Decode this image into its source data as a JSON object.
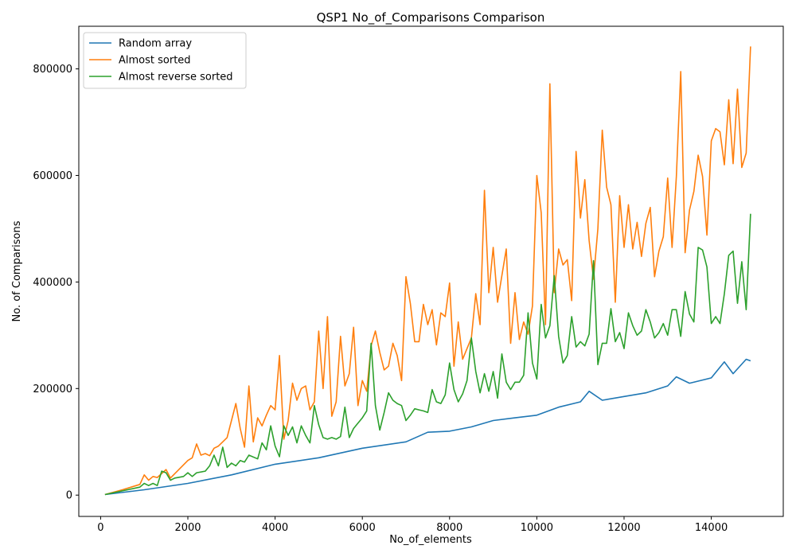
{
  "chart_data": {
    "type": "line",
    "title": "QSP1 No_of_Comparisons Comparison",
    "xlabel": "No_of_elements",
    "ylabel": "No. of Comparisons",
    "xlim": [
      -500,
      15650
    ],
    "ylim": [
      -40000,
      880000
    ],
    "xticks": [
      0,
      2000,
      4000,
      6000,
      8000,
      10000,
      12000,
      14000
    ],
    "yticks": [
      0,
      200000,
      400000,
      600000,
      800000
    ],
    "grid": false,
    "legend_position": "top-left",
    "series": [
      {
        "name": "Random array",
        "color": "#1f77b4",
        "points": [
          [
            100,
            1000
          ],
          [
            1000,
            10000
          ],
          [
            2000,
            22000
          ],
          [
            3000,
            38000
          ],
          [
            4000,
            58000
          ],
          [
            5000,
            70000
          ],
          [
            6000,
            88000
          ],
          [
            7000,
            100000
          ],
          [
            7500,
            118000
          ],
          [
            8000,
            120000
          ],
          [
            8500,
            128000
          ],
          [
            9000,
            140000
          ],
          [
            9500,
            145000
          ],
          [
            10000,
            150000
          ],
          [
            10500,
            165000
          ],
          [
            11000,
            175000
          ],
          [
            11200,
            195000
          ],
          [
            11500,
            178000
          ],
          [
            12000,
            185000
          ],
          [
            12500,
            192000
          ],
          [
            13000,
            205000
          ],
          [
            13200,
            222000
          ],
          [
            13500,
            210000
          ],
          [
            14000,
            220000
          ],
          [
            14300,
            250000
          ],
          [
            14500,
            228000
          ],
          [
            14800,
            255000
          ],
          [
            14900,
            252000
          ]
        ]
      },
      {
        "name": "Almost sorted",
        "color": "#ff7f0e",
        "points": [
          [
            100,
            1000
          ],
          [
            500,
            10000
          ],
          [
            900,
            20000
          ],
          [
            1000,
            38000
          ],
          [
            1100,
            28000
          ],
          [
            1200,
            35000
          ],
          [
            1300,
            33000
          ],
          [
            1500,
            48000
          ],
          [
            1600,
            32000
          ],
          [
            2000,
            65000
          ],
          [
            2100,
            70000
          ],
          [
            2200,
            96000
          ],
          [
            2300,
            75000
          ],
          [
            2400,
            78000
          ],
          [
            2500,
            74000
          ],
          [
            2600,
            88000
          ],
          [
            2700,
            92000
          ],
          [
            2800,
            100000
          ],
          [
            2900,
            108000
          ],
          [
            3000,
            140000
          ],
          [
            3100,
            172000
          ],
          [
            3200,
            125000
          ],
          [
            3300,
            90000
          ],
          [
            3400,
            205000
          ],
          [
            3500,
            100000
          ],
          [
            3600,
            145000
          ],
          [
            3700,
            130000
          ],
          [
            3800,
            150000
          ],
          [
            3900,
            168000
          ],
          [
            4000,
            160000
          ],
          [
            4100,
            262000
          ],
          [
            4200,
            105000
          ],
          [
            4300,
            140000
          ],
          [
            4400,
            210000
          ],
          [
            4500,
            178000
          ],
          [
            4600,
            200000
          ],
          [
            4700,
            205000
          ],
          [
            4800,
            160000
          ],
          [
            4900,
            175000
          ],
          [
            5000,
            308000
          ],
          [
            5100,
            200000
          ],
          [
            5200,
            335000
          ],
          [
            5300,
            148000
          ],
          [
            5400,
            175000
          ],
          [
            5500,
            298000
          ],
          [
            5600,
            205000
          ],
          [
            5700,
            228000
          ],
          [
            5800,
            315000
          ],
          [
            5900,
            168000
          ],
          [
            6000,
            215000
          ],
          [
            6100,
            195000
          ],
          [
            6200,
            280000
          ],
          [
            6300,
            308000
          ],
          [
            6400,
            268000
          ],
          [
            6500,
            235000
          ],
          [
            6600,
            242000
          ],
          [
            6700,
            285000
          ],
          [
            6800,
            262000
          ],
          [
            6900,
            215000
          ],
          [
            7000,
            410000
          ],
          [
            7100,
            360000
          ],
          [
            7200,
            288000
          ],
          [
            7300,
            288000
          ],
          [
            7400,
            358000
          ],
          [
            7500,
            320000
          ],
          [
            7600,
            348000
          ],
          [
            7700,
            282000
          ],
          [
            7800,
            342000
          ],
          [
            7900,
            335000
          ],
          [
            8000,
            398000
          ],
          [
            8100,
            242000
          ],
          [
            8200,
            325000
          ],
          [
            8300,
            255000
          ],
          [
            8400,
            275000
          ],
          [
            8500,
            295000
          ],
          [
            8600,
            378000
          ],
          [
            8700,
            320000
          ],
          [
            8800,
            572000
          ],
          [
            8900,
            380000
          ],
          [
            9000,
            465000
          ],
          [
            9100,
            362000
          ],
          [
            9200,
            412000
          ],
          [
            9300,
            462000
          ],
          [
            9400,
            285000
          ],
          [
            9500,
            380000
          ],
          [
            9600,
            292000
          ],
          [
            9700,
            325000
          ],
          [
            9800,
            302000
          ],
          [
            9900,
            355000
          ],
          [
            10000,
            600000
          ],
          [
            10100,
            530000
          ],
          [
            10200,
            320000
          ],
          [
            10300,
            772000
          ],
          [
            10400,
            380000
          ],
          [
            10500,
            462000
          ],
          [
            10600,
            432000
          ],
          [
            10700,
            442000
          ],
          [
            10800,
            365000
          ],
          [
            10900,
            645000
          ],
          [
            11000,
            520000
          ],
          [
            11100,
            592000
          ],
          [
            11200,
            478000
          ],
          [
            11300,
            405000
          ],
          [
            11400,
            500000
          ],
          [
            11500,
            685000
          ],
          [
            11600,
            578000
          ],
          [
            11700,
            545000
          ],
          [
            11800,
            362000
          ],
          [
            11900,
            562000
          ],
          [
            12000,
            465000
          ],
          [
            12100,
            545000
          ],
          [
            12200,
            462000
          ],
          [
            12300,
            512000
          ],
          [
            12400,
            448000
          ],
          [
            12500,
            510000
          ],
          [
            12600,
            540000
          ],
          [
            12700,
            410000
          ],
          [
            12800,
            458000
          ],
          [
            12900,
            485000
          ],
          [
            13000,
            595000
          ],
          [
            13100,
            465000
          ],
          [
            13200,
            598000
          ],
          [
            13300,
            795000
          ],
          [
            13400,
            455000
          ],
          [
            13500,
            535000
          ],
          [
            13600,
            570000
          ],
          [
            13700,
            638000
          ],
          [
            13800,
            598000
          ],
          [
            13900,
            488000
          ],
          [
            14000,
            665000
          ],
          [
            14100,
            688000
          ],
          [
            14200,
            682000
          ],
          [
            14300,
            620000
          ],
          [
            14400,
            742000
          ],
          [
            14500,
            622000
          ],
          [
            14600,
            762000
          ],
          [
            14700,
            615000
          ],
          [
            14800,
            642000
          ],
          [
            14900,
            842000
          ]
        ]
      },
      {
        "name": "Almost reverse sorted",
        "color": "#2ca02c",
        "points": [
          [
            100,
            1000
          ],
          [
            500,
            8000
          ],
          [
            900,
            15000
          ],
          [
            1000,
            22000
          ],
          [
            1100,
            18000
          ],
          [
            1200,
            22000
          ],
          [
            1300,
            18000
          ],
          [
            1400,
            45000
          ],
          [
            1500,
            42000
          ],
          [
            1600,
            28000
          ],
          [
            1700,
            32000
          ],
          [
            1900,
            35000
          ],
          [
            2000,
            42000
          ],
          [
            2100,
            35000
          ],
          [
            2200,
            42000
          ],
          [
            2400,
            45000
          ],
          [
            2500,
            55000
          ],
          [
            2600,
            75000
          ],
          [
            2700,
            55000
          ],
          [
            2800,
            90000
          ],
          [
            2900,
            52000
          ],
          [
            3000,
            60000
          ],
          [
            3100,
            55000
          ],
          [
            3200,
            65000
          ],
          [
            3300,
            62000
          ],
          [
            3400,
            75000
          ],
          [
            3600,
            68000
          ],
          [
            3700,
            98000
          ],
          [
            3800,
            85000
          ],
          [
            3900,
            130000
          ],
          [
            4000,
            92000
          ],
          [
            4100,
            72000
          ],
          [
            4200,
            130000
          ],
          [
            4300,
            112000
          ],
          [
            4400,
            128000
          ],
          [
            4500,
            98000
          ],
          [
            4600,
            130000
          ],
          [
            4700,
            112000
          ],
          [
            4800,
            98000
          ],
          [
            4900,
            168000
          ],
          [
            5000,
            132000
          ],
          [
            5100,
            108000
          ],
          [
            5200,
            105000
          ],
          [
            5300,
            108000
          ],
          [
            5400,
            105000
          ],
          [
            5500,
            110000
          ],
          [
            5600,
            165000
          ],
          [
            5700,
            108000
          ],
          [
            5800,
            125000
          ],
          [
            5900,
            135000
          ],
          [
            6000,
            145000
          ],
          [
            6100,
            158000
          ],
          [
            6200,
            285000
          ],
          [
            6300,
            168000
          ],
          [
            6400,
            122000
          ],
          [
            6500,
            155000
          ],
          [
            6600,
            192000
          ],
          [
            6700,
            178000
          ],
          [
            6800,
            172000
          ],
          [
            6900,
            168000
          ],
          [
            7000,
            140000
          ],
          [
            7100,
            150000
          ],
          [
            7200,
            162000
          ],
          [
            7300,
            160000
          ],
          [
            7400,
            158000
          ],
          [
            7500,
            155000
          ],
          [
            7600,
            198000
          ],
          [
            7700,
            175000
          ],
          [
            7800,
            172000
          ],
          [
            7900,
            188000
          ],
          [
            8000,
            248000
          ],
          [
            8100,
            198000
          ],
          [
            8200,
            175000
          ],
          [
            8300,
            190000
          ],
          [
            8400,
            215000
          ],
          [
            8500,
            295000
          ],
          [
            8600,
            232000
          ],
          [
            8700,
            192000
          ],
          [
            8800,
            228000
          ],
          [
            8900,
            195000
          ],
          [
            9000,
            232000
          ],
          [
            9100,
            182000
          ],
          [
            9200,
            265000
          ],
          [
            9300,
            212000
          ],
          [
            9400,
            198000
          ],
          [
            9500,
            212000
          ],
          [
            9600,
            212000
          ],
          [
            9700,
            225000
          ],
          [
            9800,
            342000
          ],
          [
            9900,
            248000
          ],
          [
            10000,
            218000
          ],
          [
            10100,
            358000
          ],
          [
            10200,
            295000
          ],
          [
            10300,
            318000
          ],
          [
            10400,
            412000
          ],
          [
            10500,
            298000
          ],
          [
            10600,
            248000
          ],
          [
            10700,
            262000
          ],
          [
            10800,
            335000
          ],
          [
            10900,
            278000
          ],
          [
            11000,
            288000
          ],
          [
            11100,
            280000
          ],
          [
            11200,
            302000
          ],
          [
            11300,
            440000
          ],
          [
            11400,
            245000
          ],
          [
            11500,
            285000
          ],
          [
            11600,
            285000
          ],
          [
            11700,
            350000
          ],
          [
            11800,
            288000
          ],
          [
            11900,
            305000
          ],
          [
            12000,
            275000
          ],
          [
            12100,
            342000
          ],
          [
            12200,
            318000
          ],
          [
            12300,
            300000
          ],
          [
            12400,
            308000
          ],
          [
            12500,
            348000
          ],
          [
            12600,
            325000
          ],
          [
            12700,
            295000
          ],
          [
            12800,
            305000
          ],
          [
            12900,
            322000
          ],
          [
            13000,
            300000
          ],
          [
            13100,
            348000
          ],
          [
            13200,
            348000
          ],
          [
            13300,
            298000
          ],
          [
            13400,
            382000
          ],
          [
            13500,
            340000
          ],
          [
            13600,
            325000
          ],
          [
            13700,
            465000
          ],
          [
            13800,
            460000
          ],
          [
            13900,
            428000
          ],
          [
            14000,
            322000
          ],
          [
            14100,
            335000
          ],
          [
            14200,
            322000
          ],
          [
            14300,
            378000
          ],
          [
            14400,
            450000
          ],
          [
            14500,
            458000
          ],
          [
            14600,
            360000
          ],
          [
            14700,
            438000
          ],
          [
            14800,
            348000
          ],
          [
            14900,
            528000
          ]
        ]
      }
    ]
  }
}
